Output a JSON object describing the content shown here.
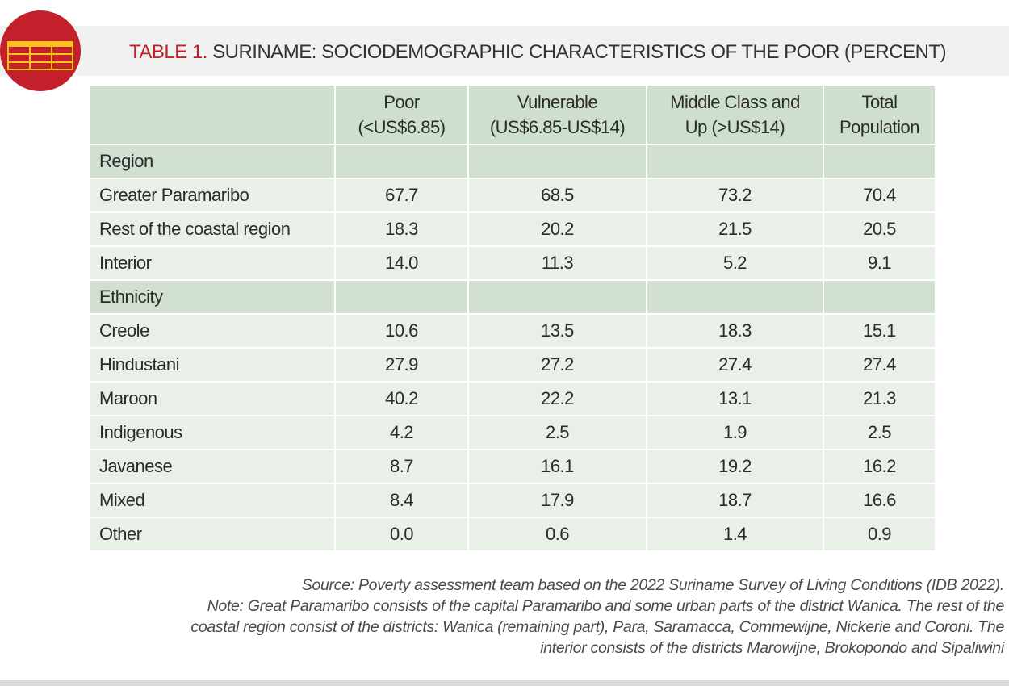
{
  "title": {
    "label": "TABLE 1.",
    "text": " SURINAME: SOCIODEMOGRAPHIC CHARACTERISTICS OF THE POOR (PERCENT)"
  },
  "colors": {
    "accent": "#c3202b",
    "header_fill": "#cfdfcf",
    "row_fill": "#e9f0e8",
    "title_band": "#f0f1f1"
  },
  "table": {
    "columns": [
      "",
      "Poor (<US$6.85)",
      "Vulnerable (US$6.85-US$14)",
      "Middle Class and Up (>US$14)",
      "Total Population"
    ],
    "column_lines": [
      [],
      [
        "Poor",
        "(<US$6.85)"
      ],
      [
        "Vulnerable",
        "(US$6.85-US$14)"
      ],
      [
        "Middle Class and",
        "Up (>US$14)"
      ],
      [
        "Total",
        "Population"
      ]
    ],
    "groups": [
      {
        "name": "Region",
        "rows": [
          {
            "label": "Greater Paramaribo",
            "values": [
              "67.7",
              "68.5",
              "73.2",
              "70.4"
            ]
          },
          {
            "label": "Rest of the coastal region",
            "values": [
              "18.3",
              "20.2",
              "21.5",
              "20.5"
            ]
          },
          {
            "label": "Interior",
            "values": [
              "14.0",
              "11.3",
              "5.2",
              "9.1"
            ]
          }
        ]
      },
      {
        "name": "Ethnicity",
        "rows": [
          {
            "label": "Creole",
            "values": [
              "10.6",
              "13.5",
              "18.3",
              "15.1"
            ]
          },
          {
            "label": "Hindustani",
            "values": [
              "27.9",
              "27.2",
              "27.4",
              "27.4"
            ]
          },
          {
            "label": "Maroon",
            "values": [
              "40.2",
              "22.2",
              "13.1",
              "21.3"
            ]
          },
          {
            "label": "Indigenous",
            "values": [
              "4.2",
              "2.5",
              "1.9",
              "2.5"
            ]
          },
          {
            "label": "Javanese",
            "values": [
              "8.7",
              "16.1",
              "19.2",
              "16.2"
            ]
          },
          {
            "label": "Mixed",
            "values": [
              "8.4",
              "17.9",
              "18.7",
              "16.6"
            ]
          },
          {
            "label": "Other",
            "values": [
              "0.0",
              "0.6",
              "1.4",
              "0.9"
            ]
          }
        ]
      }
    ]
  },
  "notes": {
    "source": "Source: Poverty assessment team based on the 2022 Suriname Survey of Living Conditions (IDB 2022).",
    "note_lines": [
      "Note: Great Paramaribo consists of the capital Paramaribo and some urban parts of the district Wanica. The rest of the",
      "coastal region consist of the districts: Wanica (remaining part), Para, Saramacca, Commewijne, Nickerie and Coroni. The",
      "interior consists of the districts Marowijne, Brokopondo and Sipaliwini"
    ]
  }
}
